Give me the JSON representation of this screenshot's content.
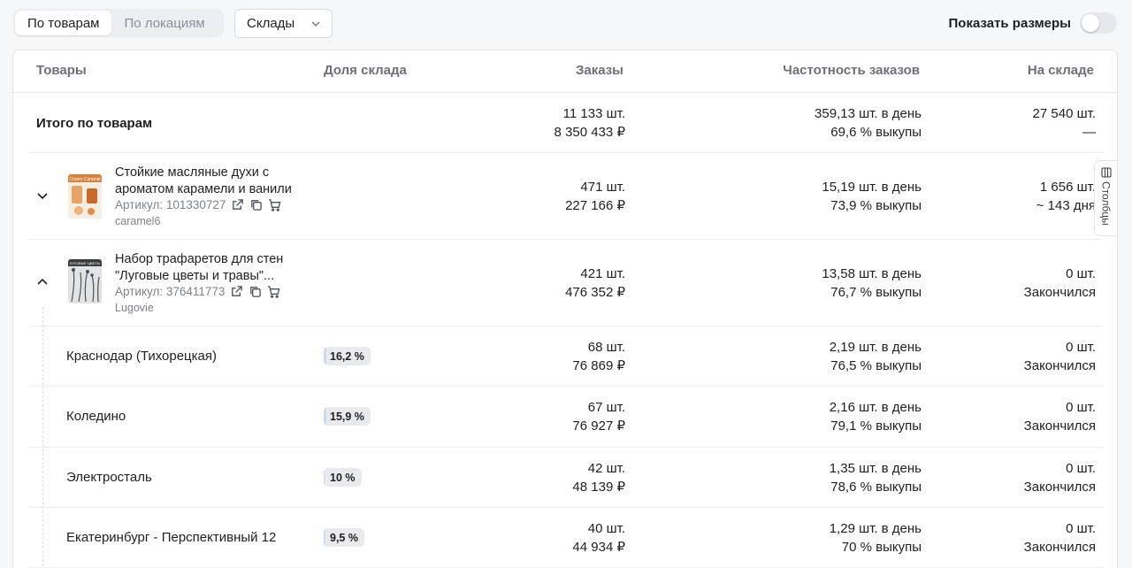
{
  "tabs": [
    {
      "label": "По товарам",
      "active": true
    },
    {
      "label": "По локациям",
      "active": false
    }
  ],
  "warehouse_select": {
    "value": "Склады"
  },
  "sizes_toggle": {
    "label": "Показать размеры",
    "on": false
  },
  "columns_tab": {
    "label": "Столбцы"
  },
  "table": {
    "headers": {
      "products": "Товары",
      "share": "Доля склада",
      "orders": "Заказы",
      "frequency": "Частотность заказов",
      "stock": "На складе"
    },
    "total": {
      "label": "Итого по товарам",
      "orders_qty": "11 133 шт.",
      "orders_sum": "8 350 433 ₽",
      "freq": "359,13 шт. в день",
      "buyout": "69,6 % выкупы",
      "stock_qty": "27 540 шт.",
      "stock_days": "—"
    },
    "products": [
      {
        "name_line1": "Стойкие масляные духи с",
        "name_line2": "ароматом карамели и ванили",
        "article": "Артикул: 101330727",
        "brand": "caramel6",
        "orders_qty": "471 шт.",
        "orders_sum": "227 166 ₽",
        "freq": "15,19 шт. в день",
        "buyout": "73,9 % выкупы",
        "stock_qty": "1 656 шт.",
        "stock_days": "~ 143 дня",
        "expanded": false,
        "thumb_text": "Cream Caramel"
      },
      {
        "name_line1": "Набор трафаретов для стен",
        "name_line2": "\"Луговые цветы и травы\"...",
        "article": "Артикул: 376411773",
        "brand": "Lugovie",
        "orders_qty": "421 шт.",
        "orders_sum": "476 352 ₽",
        "freq": "13,58 шт. в день",
        "buyout": "76,7 % выкупы",
        "stock_qty": "0 шт.",
        "stock_days": "Закончился",
        "expanded": true,
        "thumb_text": "ЛУГОВЫЕ ЦВЕТЫ"
      }
    ],
    "warehouses": [
      {
        "name": "Краснодар (Тихорецкая)",
        "share": "16,2 %",
        "share_value": 16.2,
        "orders_qty": "68 шт.",
        "orders_sum": "76 869 ₽",
        "freq": "2,19 шт. в день",
        "buyout": "76,5 % выкупы",
        "stock_qty": "0 шт.",
        "stock_days": "Закончился"
      },
      {
        "name": "Коледино",
        "share": "15,9 %",
        "share_value": 15.9,
        "orders_qty": "67 шт.",
        "orders_sum": "76 927 ₽",
        "freq": "2,16 шт. в день",
        "buyout": "79,1 % выкупы",
        "stock_qty": "0 шт.",
        "stock_days": "Закончился"
      },
      {
        "name": "Электросталь",
        "share": "10 %",
        "share_value": 10,
        "orders_qty": "42 шт.",
        "orders_sum": "48 139 ₽",
        "freq": "1,35 шт. в день",
        "buyout": "78,6 % выкупы",
        "stock_qty": "0 шт.",
        "stock_days": "Закончился"
      },
      {
        "name": "Екатеринбург - Перспективный 12",
        "share": "9,5 %",
        "share_value": 9.5,
        "orders_qty": "40 шт.",
        "orders_sum": "44 934 ₽",
        "freq": "1,29 шт. в день",
        "buyout": "70 % выкупы",
        "stock_qty": "0 шт.",
        "stock_days": "Закончился"
      }
    ]
  }
}
